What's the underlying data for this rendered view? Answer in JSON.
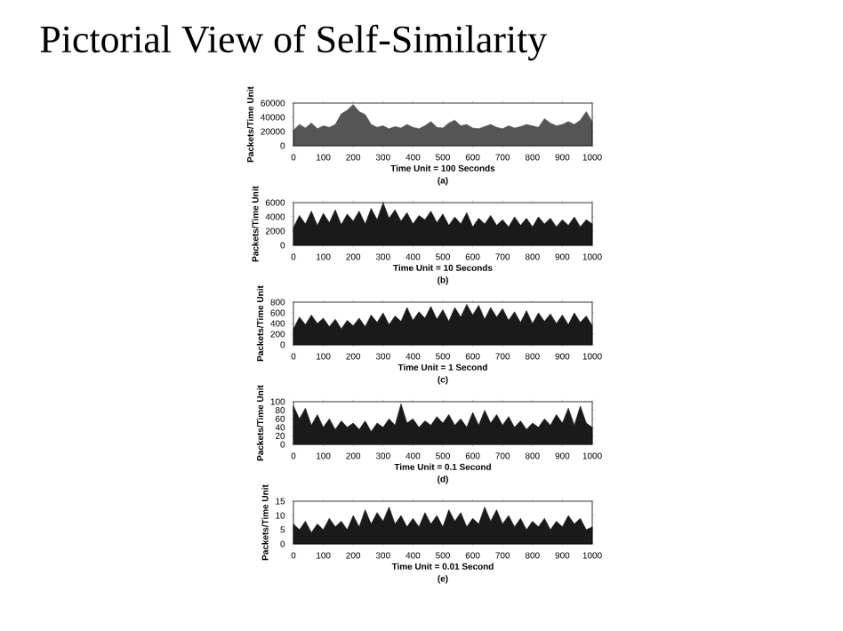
{
  "chart_data": [
    {
      "type": "area",
      "title": "Pictorial View of Self-Similarity",
      "xlabel": "Time Unit = 100 Seconds",
      "ylabel": "Packets/Time Unit",
      "annotations": [
        "(a)"
      ],
      "color": "#555555",
      "xlim": [
        0,
        1000
      ],
      "ylim": [
        0,
        60000
      ],
      "xticks": [
        0,
        100,
        200,
        300,
        400,
        500,
        600,
        700,
        800,
        900,
        1000
      ],
      "yticks": [
        0,
        20000,
        40000,
        60000
      ],
      "x": [
        0,
        20,
        40,
        60,
        80,
        100,
        120,
        140,
        160,
        180,
        200,
        220,
        240,
        260,
        280,
        300,
        320,
        340,
        360,
        380,
        400,
        420,
        440,
        460,
        480,
        500,
        520,
        540,
        560,
        580,
        600,
        620,
        640,
        660,
        680,
        700,
        720,
        740,
        760,
        780,
        800,
        820,
        840,
        860,
        880,
        900,
        920,
        940,
        960,
        980,
        1000
      ],
      "values": [
        22000,
        30000,
        25000,
        32000,
        24000,
        28000,
        26000,
        30000,
        45000,
        50000,
        58000,
        48000,
        44000,
        30000,
        26000,
        28000,
        24000,
        27000,
        25000,
        30000,
        26000,
        24000,
        28000,
        34000,
        26000,
        25000,
        32000,
        36000,
        28000,
        30000,
        25000,
        24000,
        27000,
        30000,
        26000,
        24000,
        28000,
        25000,
        27000,
        30000,
        28000,
        26000,
        38000,
        32000,
        28000,
        30000,
        34000,
        30000,
        36000,
        48000,
        34000
      ]
    },
    {
      "type": "area",
      "xlabel": "Time Unit = 10 Seconds",
      "ylabel": "Packets/Time Unit",
      "annotations": [
        "(b)"
      ],
      "color": "#1a1a1a",
      "xlim": [
        0,
        1000
      ],
      "ylim": [
        0,
        6000
      ],
      "xticks": [
        0,
        100,
        200,
        300,
        400,
        500,
        600,
        700,
        800,
        900,
        1000
      ],
      "yticks": [
        0,
        2000,
        4000,
        6000
      ],
      "x": [
        0,
        20,
        40,
        60,
        80,
        100,
        120,
        140,
        160,
        180,
        200,
        220,
        240,
        260,
        280,
        300,
        320,
        340,
        360,
        380,
        400,
        420,
        440,
        460,
        480,
        500,
        520,
        540,
        560,
        580,
        600,
        620,
        640,
        660,
        680,
        700,
        720,
        740,
        760,
        780,
        800,
        820,
        840,
        860,
        880,
        900,
        920,
        940,
        960,
        980,
        1000
      ],
      "values": [
        2500,
        4200,
        3000,
        4800,
        2800,
        4500,
        3200,
        5000,
        2900,
        4400,
        3400,
        4800,
        3000,
        5200,
        3600,
        6000,
        3800,
        5000,
        3400,
        4600,
        3000,
        4200,
        3600,
        4800,
        3200,
        4400,
        2800,
        4000,
        3000,
        4600,
        2600,
        3800,
        3000,
        4200,
        2800,
        3600,
        2600,
        4000,
        2800,
        3800,
        2600,
        4000,
        3000,
        3800,
        2600,
        3600,
        2800,
        4000,
        2600,
        3600,
        3000
      ]
    },
    {
      "type": "area",
      "xlabel": "Time Unit = 1 Second",
      "ylabel": "Packets/Time Unit",
      "annotations": [
        "(c)"
      ],
      "color": "#1a1a1a",
      "xlim": [
        0,
        1000
      ],
      "ylim": [
        0,
        800
      ],
      "xticks": [
        0,
        100,
        200,
        300,
        400,
        500,
        600,
        700,
        800,
        900,
        1000
      ],
      "yticks": [
        0,
        200,
        400,
        600,
        800
      ],
      "x": [
        0,
        20,
        40,
        60,
        80,
        100,
        120,
        140,
        160,
        180,
        200,
        220,
        240,
        260,
        280,
        300,
        320,
        340,
        360,
        380,
        400,
        420,
        440,
        460,
        480,
        500,
        520,
        540,
        560,
        580,
        600,
        620,
        640,
        660,
        680,
        700,
        720,
        740,
        760,
        780,
        800,
        820,
        840,
        860,
        880,
        900,
        920,
        940,
        960,
        980,
        1000
      ],
      "values": [
        300,
        520,
        380,
        560,
        400,
        500,
        340,
        480,
        300,
        460,
        360,
        500,
        340,
        560,
        420,
        600,
        380,
        540,
        440,
        700,
        460,
        620,
        500,
        720,
        480,
        660,
        440,
        700,
        520,
        760,
        560,
        740,
        480,
        700,
        520,
        680,
        460,
        620,
        420,
        640,
        400,
        600,
        440,
        580,
        400,
        560,
        380,
        600,
        420,
        540,
        360
      ]
    },
    {
      "type": "area",
      "xlabel": "Time Unit = 0.1 Second",
      "ylabel": "Packets/Time Unit",
      "annotations": [
        "(d)"
      ],
      "color": "#1a1a1a",
      "xlim": [
        0,
        1000
      ],
      "ylim": [
        0,
        100
      ],
      "xticks": [
        0,
        100,
        200,
        300,
        400,
        500,
        600,
        700,
        800,
        900,
        1000
      ],
      "yticks": [
        0,
        20,
        40,
        60,
        80,
        100
      ],
      "x": [
        0,
        20,
        40,
        60,
        80,
        100,
        120,
        140,
        160,
        180,
        200,
        220,
        240,
        260,
        280,
        300,
        320,
        340,
        360,
        380,
        400,
        420,
        440,
        460,
        480,
        500,
        520,
        540,
        560,
        580,
        600,
        620,
        640,
        660,
        680,
        700,
        720,
        740,
        760,
        780,
        800,
        820,
        840,
        860,
        880,
        900,
        920,
        940,
        960,
        980,
        1000
      ],
      "values": [
        90,
        60,
        85,
        45,
        70,
        40,
        60,
        35,
        55,
        40,
        50,
        35,
        55,
        30,
        50,
        40,
        60,
        45,
        95,
        50,
        60,
        40,
        55,
        45,
        65,
        50,
        70,
        45,
        60,
        40,
        75,
        45,
        80,
        50,
        70,
        45,
        65,
        40,
        55,
        35,
        50,
        40,
        60,
        45,
        70,
        50,
        85,
        45,
        90,
        50,
        40
      ]
    },
    {
      "type": "area",
      "xlabel": "Time Unit = 0.01 Second",
      "ylabel": "Packets/Time Unit",
      "annotations": [
        "(e)"
      ],
      "color": "#1a1a1a",
      "xlim": [
        0,
        1000
      ],
      "ylim": [
        0,
        15
      ],
      "xticks": [
        0,
        100,
        200,
        300,
        400,
        500,
        600,
        700,
        800,
        900,
        1000
      ],
      "yticks": [
        0,
        5,
        10,
        15
      ],
      "x": [
        0,
        20,
        40,
        60,
        80,
        100,
        120,
        140,
        160,
        180,
        200,
        220,
        240,
        260,
        280,
        300,
        320,
        340,
        360,
        380,
        400,
        420,
        440,
        460,
        480,
        500,
        520,
        540,
        560,
        580,
        600,
        620,
        640,
        660,
        680,
        700,
        720,
        740,
        760,
        780,
        800,
        820,
        840,
        860,
        880,
        900,
        920,
        940,
        960,
        980,
        1000
      ],
      "values": [
        7,
        5,
        8,
        4,
        7,
        5,
        9,
        6,
        8,
        5,
        10,
        6,
        12,
        7,
        11,
        8,
        13,
        7,
        10,
        6,
        9,
        6,
        11,
        7,
        10,
        6,
        12,
        8,
        11,
        6,
        9,
        7,
        13,
        8,
        12,
        7,
        10,
        6,
        9,
        5,
        8,
        6,
        9,
        5,
        8,
        6,
        10,
        7,
        9,
        5,
        6
      ]
    }
  ]
}
